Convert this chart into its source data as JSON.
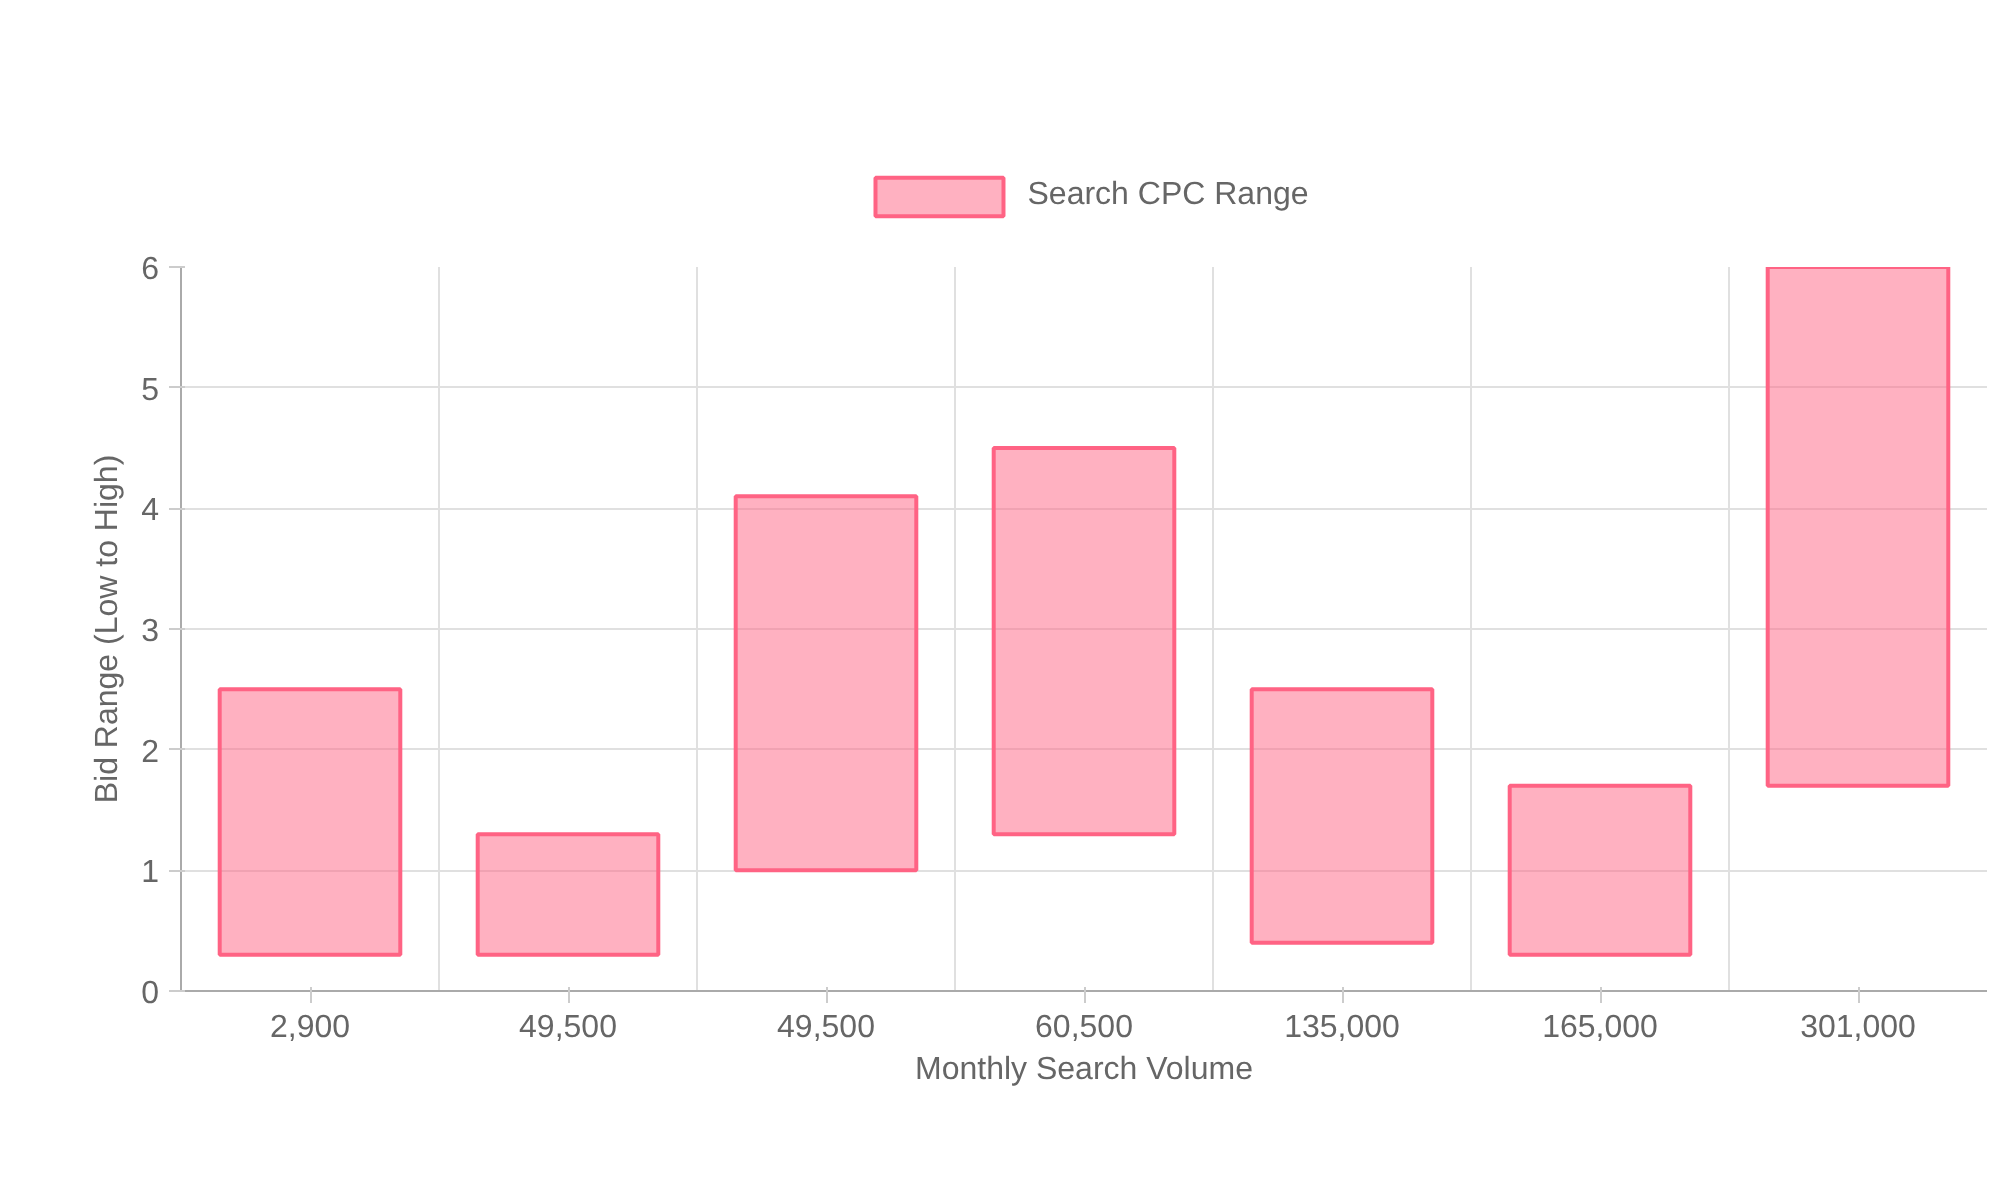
{
  "chart_data": {
    "type": "bar",
    "xlabel": "Monthly Search Volume",
    "ylabel": "Bid Range (Low to High)",
    "categories": [
      "2,900",
      "49,500",
      "49,500",
      "60,500",
      "135,000",
      "165,000",
      "301,000"
    ],
    "series": [
      {
        "name": "Search CPC Range",
        "color": "#ff6384",
        "values": [
          2.2,
          1.0,
          3.1,
          3.2,
          2.1,
          1.4,
          4.3
        ],
        "base": [
          0.3,
          0.3,
          1.0,
          1.3,
          0.4,
          0.3,
          1.7
        ]
      }
    ],
    "ylim": [
      0,
      6
    ],
    "yticks": [
      0,
      1,
      2,
      3,
      4,
      5,
      6
    ],
    "grid": true,
    "legend": "top"
  }
}
